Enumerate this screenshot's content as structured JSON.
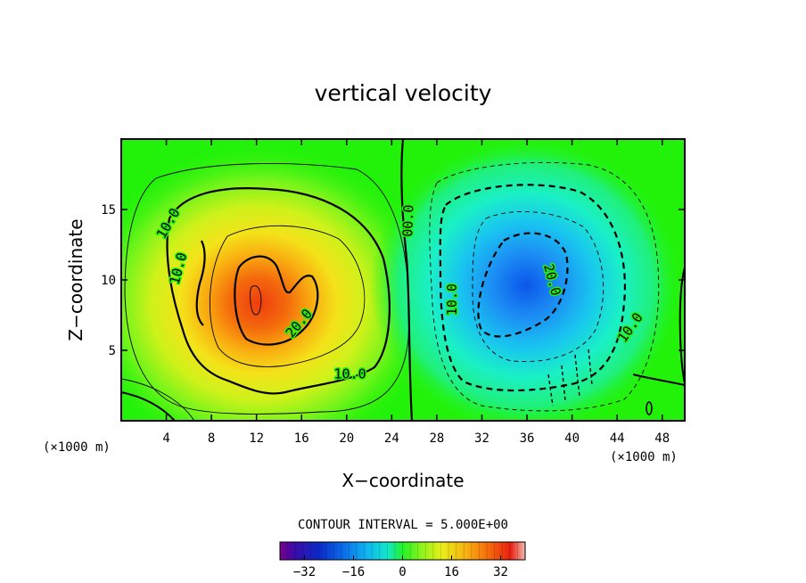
{
  "chart_data": {
    "type": "heatmap",
    "title": "vertical velocity",
    "xlabel": "X−coordinate",
    "ylabel": "Z−coordinate",
    "x_unit": "(×1000 m)",
    "z_unit": "(×1000 m)",
    "xlim": [
      0,
      50
    ],
    "ylim": [
      0,
      20
    ],
    "x_ticks": [
      4,
      8,
      12,
      16,
      20,
      24,
      28,
      32,
      36,
      40,
      44,
      48
    ],
    "y_ticks": [
      5,
      10,
      15
    ],
    "contour_interval_text": "CONTOUR INTERVAL = 5.000E+00",
    "contour_interval": 5.0,
    "contour_labels": [
      {
        "text": "10.0",
        "x": 4.2,
        "z": 14.0,
        "angle": -60
      },
      {
        "text": "10.0",
        "x": 5.1,
        "z": 10.8,
        "angle": -75
      },
      {
        "text": "20.0",
        "x": 15.8,
        "z": 6.9,
        "angle": -50
      },
      {
        "text": "10.0",
        "x": 20.3,
        "z": 3.3,
        "angle": 0
      },
      {
        "text": "00.0",
        "x": 25.5,
        "z": 14.2,
        "angle": -88
      },
      {
        "text": "10.0",
        "x": 29.4,
        "z": 8.6,
        "angle": -90
      },
      {
        "text": "20.0",
        "x": 38.2,
        "z": 10.0,
        "angle": 75
      },
      {
        "text": "10.0",
        "x": 45.2,
        "z": 6.6,
        "angle": -55
      }
    ],
    "updraft": {
      "center_x": 12.5,
      "center_z": 9.0,
      "peak": 26
    },
    "downdraft": {
      "center_x": 36.0,
      "center_z": 10.0,
      "peak": -24
    },
    "colorbar": {
      "min": -40,
      "max": 40,
      "ticks": [
        -32,
        -16,
        0,
        16,
        32
      ],
      "tick_labels": [
        "−32",
        "−16",
        "0",
        "16",
        "32"
      ]
    }
  }
}
